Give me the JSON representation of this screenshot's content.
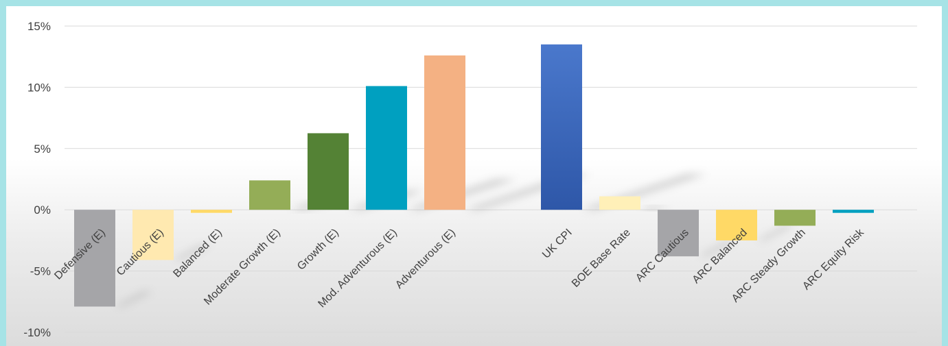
{
  "chart_data": {
    "type": "bar",
    "title": "",
    "xlabel": "",
    "ylabel": "",
    "ylim": [
      -10,
      15
    ],
    "yticks": [
      15,
      10,
      5,
      0,
      -5,
      -10
    ],
    "ytick_labels": [
      "15%",
      "10%",
      "5%",
      "0%",
      "-5%",
      "-10%"
    ],
    "grid": true,
    "legend": "none",
    "categories": [
      "Defensive (E)",
      "Cautious (E)",
      "Balanced (E)",
      "Moderate Growth (E)",
      "Growth (E)",
      "Mod. Adventurous (E)",
      "Adventurous (E)",
      "",
      "UK CPI",
      "BOE Base Rate",
      "ARC Cautious",
      "ARC Balanced",
      "ARC Steady Growth",
      "ARC Equity Risk"
    ],
    "values": [
      -7.9,
      -4.1,
      -0.25,
      2.4,
      6.25,
      10.1,
      12.6,
      null,
      13.5,
      1.1,
      -3.8,
      -2.5,
      -1.3,
      -0.25
    ],
    "colors": [
      "#a5a5a8",
      "#ffe9b0",
      "#ffd966",
      "#94ad57",
      "#548235",
      "#00a0c0",
      "#f4b183",
      "#ffffff",
      "#4472c4",
      "#fff0b8",
      "#a5a5a8",
      "#ffd966",
      "#94ad57",
      "#00a0c0"
    ]
  }
}
